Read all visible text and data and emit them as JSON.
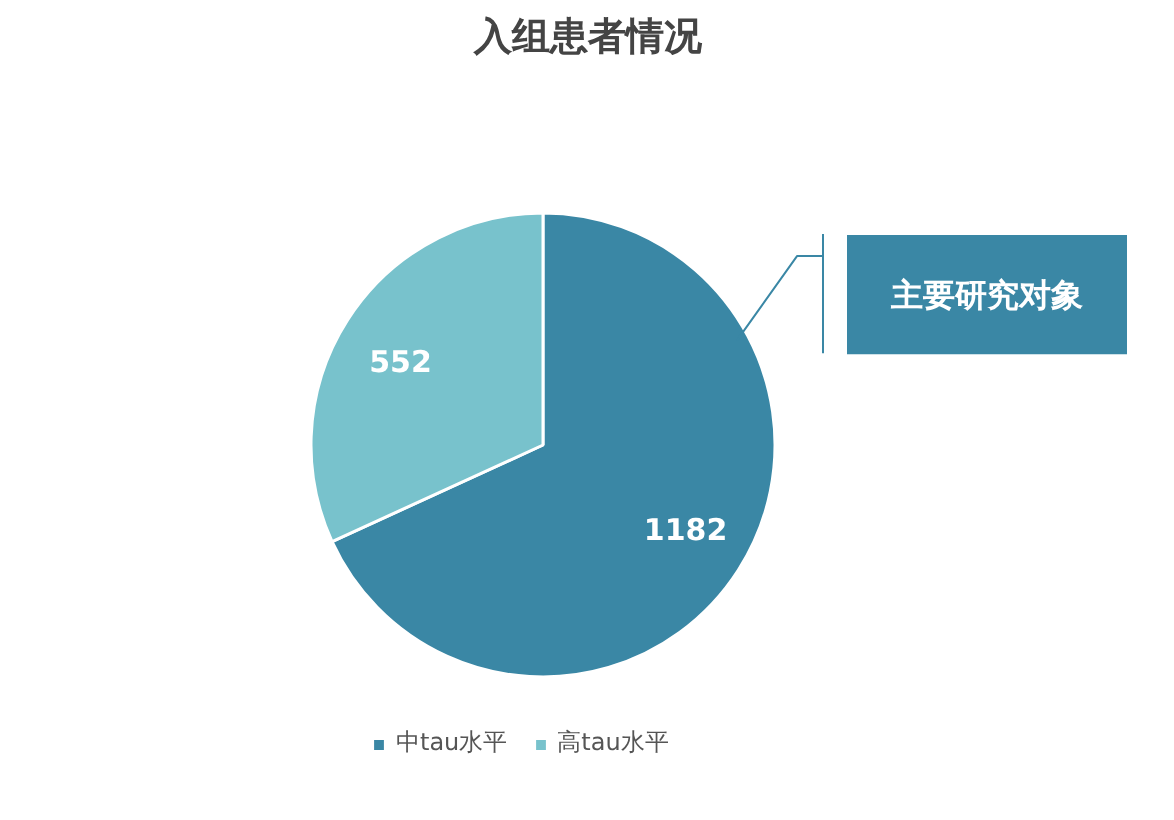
{
  "chart_data": {
    "type": "pie",
    "title": "入组患者情况",
    "categories": [
      "中tau水平",
      "高tau水平"
    ],
    "values": [
      1182,
      552
    ],
    "colors": [
      "#3a87a5",
      "#78c2cc"
    ],
    "data_labels": true,
    "legend": "bottom",
    "annotations": [
      "主要研究对象"
    ]
  }
}
